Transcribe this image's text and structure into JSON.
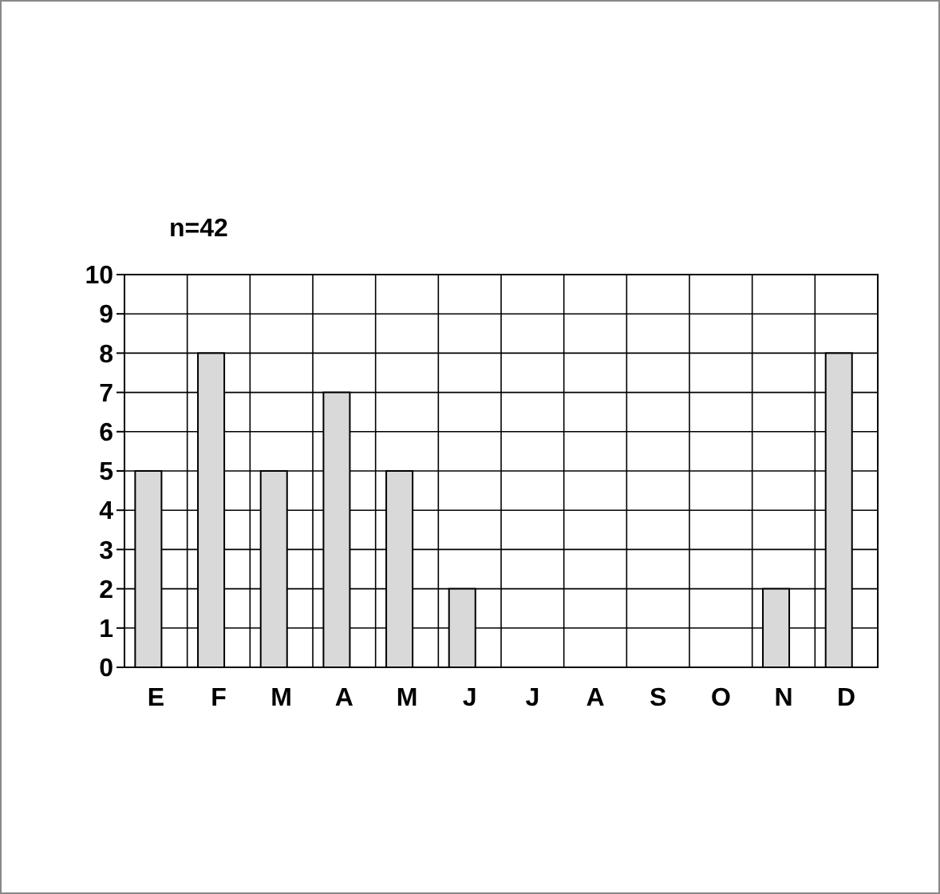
{
  "chart_data": {
    "type": "bar",
    "title": "n=42",
    "categories": [
      "E",
      "F",
      "M",
      "A",
      "M",
      "J",
      "J",
      "A",
      "S",
      "O",
      "N",
      "D"
    ],
    "values": [
      5,
      8,
      5,
      7,
      5,
      2,
      0,
      0,
      0,
      0,
      2,
      8
    ],
    "color": "#d9d9d9",
    "ylim": [
      0,
      10
    ],
    "yticks": [
      0,
      1,
      2,
      3,
      4,
      5,
      6,
      7,
      8,
      9,
      10
    ],
    "grid": true
  }
}
